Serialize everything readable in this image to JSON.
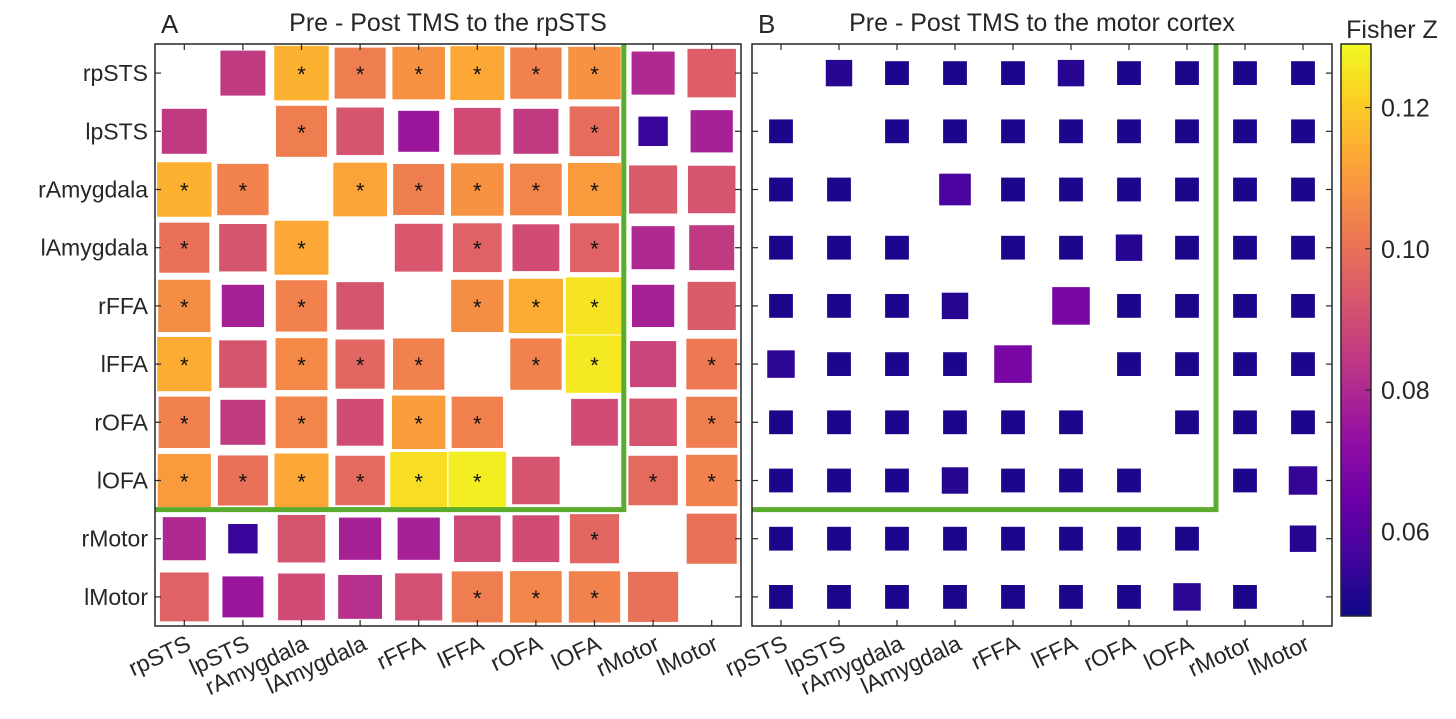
{
  "chart_data": [
    {
      "type": "heatmap",
      "panel_label": "A",
      "title": "Pre - Post TMS to the rpSTS",
      "rows": [
        "rpSTS",
        "lpSTS",
        "rAmygdala",
        "lAmygdala",
        "rFFA",
        "lFFA",
        "rOFA",
        "lOFA",
        "rMotor",
        "lMotor"
      ],
      "cols": [
        "rpSTS",
        "lpSTS",
        "rAmygdala",
        "lAmygdala",
        "rFFA",
        "lFFA",
        "rOFA",
        "lOFA",
        "rMotor",
        "lMotor"
      ],
      "values": [
        [
          null,
          0.085,
          0.115,
          0.103,
          0.108,
          0.113,
          0.104,
          0.108,
          0.08,
          0.095
        ],
        [
          0.085,
          null,
          0.103,
          0.092,
          0.075,
          0.09,
          0.085,
          0.099,
          0.055,
          0.078
        ],
        [
          0.115,
          0.104,
          null,
          0.112,
          0.103,
          0.108,
          0.105,
          0.11,
          0.094,
          0.092
        ],
        [
          0.1,
          0.092,
          0.113,
          null,
          0.093,
          0.096,
          0.09,
          0.096,
          0.08,
          0.085
        ],
        [
          0.107,
          0.078,
          0.104,
          0.092,
          null,
          0.107,
          0.114,
          0.125,
          0.078,
          0.094
        ],
        [
          0.114,
          0.092,
          0.106,
          0.097,
          0.104,
          null,
          0.104,
          0.126,
          0.088,
          0.102
        ],
        [
          0.104,
          0.085,
          0.105,
          0.09,
          0.111,
          0.104,
          null,
          0.09,
          0.092,
          0.103
        ],
        [
          0.11,
          0.1,
          0.113,
          0.098,
          0.124,
          0.127,
          0.092,
          null,
          0.098,
          0.104
        ],
        [
          0.08,
          0.055,
          0.092,
          0.078,
          0.078,
          0.089,
          0.09,
          0.097,
          null,
          0.1
        ],
        [
          0.096,
          0.075,
          0.09,
          0.082,
          0.091,
          0.103,
          0.105,
          0.104,
          0.1,
          null
        ]
      ],
      "significant": [
        [
          false,
          false,
          true,
          true,
          true,
          true,
          true,
          true,
          false,
          false
        ],
        [
          false,
          false,
          true,
          false,
          false,
          false,
          false,
          true,
          false,
          false
        ],
        [
          true,
          true,
          false,
          true,
          true,
          true,
          true,
          true,
          false,
          false
        ],
        [
          true,
          false,
          true,
          false,
          false,
          true,
          false,
          true,
          false,
          false
        ],
        [
          true,
          false,
          true,
          false,
          false,
          true,
          true,
          true,
          false,
          false
        ],
        [
          true,
          false,
          true,
          true,
          true,
          false,
          true,
          true,
          false,
          true
        ],
        [
          true,
          false,
          true,
          false,
          true,
          true,
          false,
          false,
          false,
          true
        ],
        [
          true,
          true,
          true,
          true,
          true,
          true,
          false,
          false,
          true,
          true
        ],
        [
          false,
          false,
          false,
          false,
          false,
          false,
          false,
          true,
          false,
          false
        ],
        [
          false,
          false,
          false,
          false,
          false,
          true,
          true,
          true,
          false,
          false
        ]
      ],
      "highlight_block": {
        "first": "rpSTS",
        "last": "lOFA",
        "color": "#5aab2e"
      }
    },
    {
      "type": "heatmap",
      "panel_label": "B",
      "title": "Pre - Post TMS to the motor cortex",
      "rows": [
        "rpSTS",
        "lpSTS",
        "rAmygdala",
        "lAmygdala",
        "rFFA",
        "lFFA",
        "rOFA",
        "lOFA",
        "rMotor",
        "lMotor"
      ],
      "cols": [
        "rpSTS",
        "lpSTS",
        "rAmygdala",
        "lAmygdala",
        "rFFA",
        "lFFA",
        "rOFA",
        "lOFA",
        "rMotor",
        "lMotor"
      ],
      "values": [
        [
          null,
          0.052,
          0.05,
          0.05,
          0.05,
          0.052,
          0.05,
          0.05,
          0.05,
          0.05
        ],
        [
          0.05,
          null,
          0.05,
          0.05,
          0.05,
          0.05,
          0.05,
          0.05,
          0.05,
          0.05
        ],
        [
          0.05,
          0.05,
          null,
          0.058,
          0.05,
          0.05,
          0.05,
          0.05,
          0.05,
          0.05
        ],
        [
          0.05,
          0.05,
          0.05,
          null,
          0.05,
          0.05,
          0.052,
          0.05,
          0.05,
          0.05
        ],
        [
          0.05,
          0.05,
          0.05,
          0.052,
          null,
          0.068,
          0.05,
          0.05,
          0.05,
          0.05
        ],
        [
          0.053,
          0.05,
          0.05,
          0.05,
          0.068,
          null,
          0.05,
          0.05,
          0.05,
          0.05
        ],
        [
          0.05,
          0.05,
          0.05,
          0.05,
          0.05,
          0.05,
          null,
          0.05,
          0.05,
          0.05
        ],
        [
          0.05,
          0.05,
          0.05,
          0.052,
          0.05,
          0.05,
          0.05,
          null,
          0.05,
          0.054
        ],
        [
          0.05,
          0.05,
          0.05,
          0.05,
          0.05,
          0.05,
          0.05,
          0.05,
          null,
          0.052
        ],
        [
          0.05,
          0.05,
          0.05,
          0.05,
          0.05,
          0.05,
          0.05,
          0.053,
          0.05,
          null
        ]
      ],
      "significant": [],
      "highlight_block": {
        "first": "rpSTS",
        "last": "lOFA",
        "color": "#5aab2e"
      }
    }
  ],
  "colorbar": {
    "label": "Fisher Z",
    "min": 0.048,
    "max": 0.129,
    "ticks": [
      0.06,
      0.08,
      0.1,
      0.12
    ],
    "tick_labels": [
      "0.06",
      "0.08",
      "0.10",
      "0.12"
    ],
    "colormap": "plasma"
  },
  "star_symbol": "*"
}
